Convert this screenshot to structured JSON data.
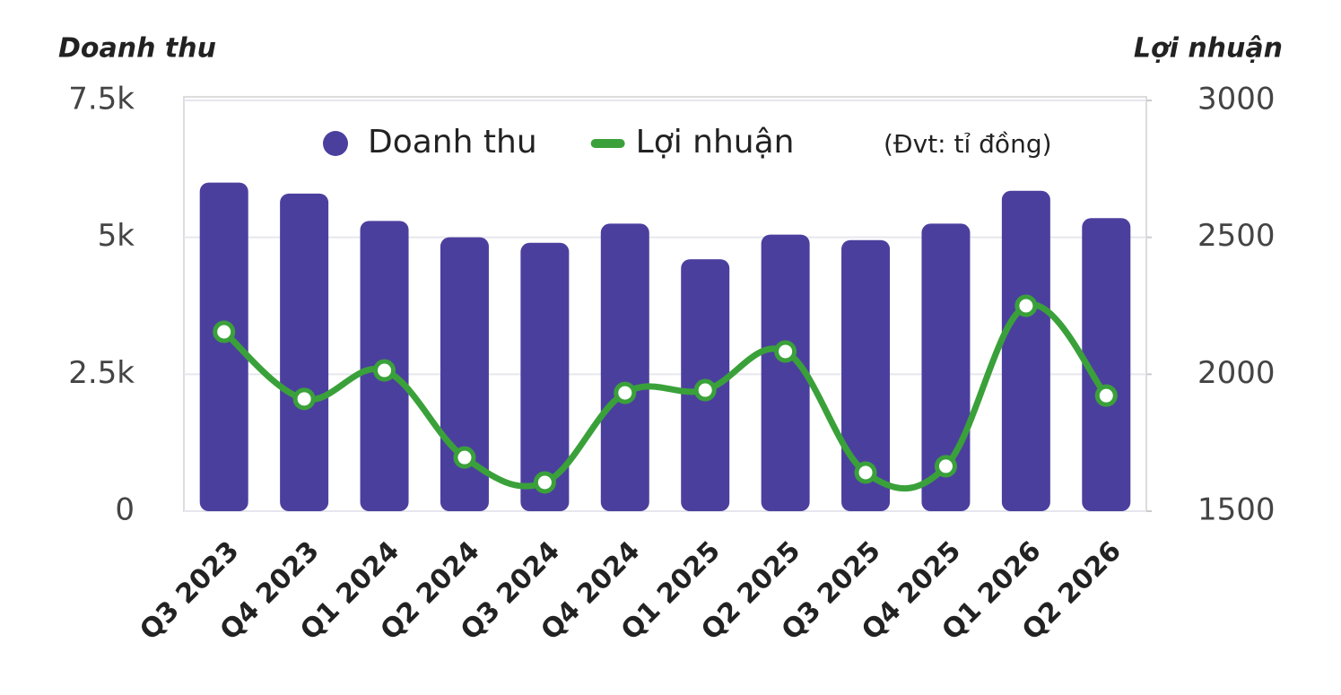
{
  "chart_data": {
    "type": "bar_line",
    "y_title": "Doanh thu",
    "y2_title": "Lợi nhuận",
    "note": "(Đvt: tỉ đồng)",
    "categories": [
      "Q3 2023",
      "Q4 2023",
      "Q1 2024",
      "Q2 2024",
      "Q3 2024",
      "Q4 2024",
      "Q1 2025",
      "Q2 2025",
      "Q3 2025",
      "Q4 2025",
      "Q1 2026",
      "Q2 2026"
    ],
    "series": [
      {
        "name": "Doanh thu",
        "type": "bar",
        "color": "#4b3f9e",
        "values": [
          6000,
          5800,
          5300,
          5000,
          4900,
          5250,
          4600,
          5050,
          4950,
          5250,
          5850,
          5350
        ]
      },
      {
        "name": "Lợi nhuận",
        "type": "line",
        "axis": "y2",
        "color": "#3aa13a",
        "values": [
          2155,
          1910,
          2014,
          1696,
          1605,
          1932,
          1942,
          2083,
          1641,
          1664,
          2250,
          1922
        ]
      }
    ],
    "ylim": [
      0,
      7500
    ],
    "yticks": [
      0,
      {
        "value": 2500,
        "label": "2.5k"
      },
      {
        "value": 5000,
        "label": "5k"
      },
      {
        "value": 7500,
        "label": "7.5k"
      }
    ],
    "y2lim": [
      1500,
      3000
    ],
    "y2ticks": [
      1500,
      2000,
      2500,
      3000
    ],
    "grid": true
  }
}
